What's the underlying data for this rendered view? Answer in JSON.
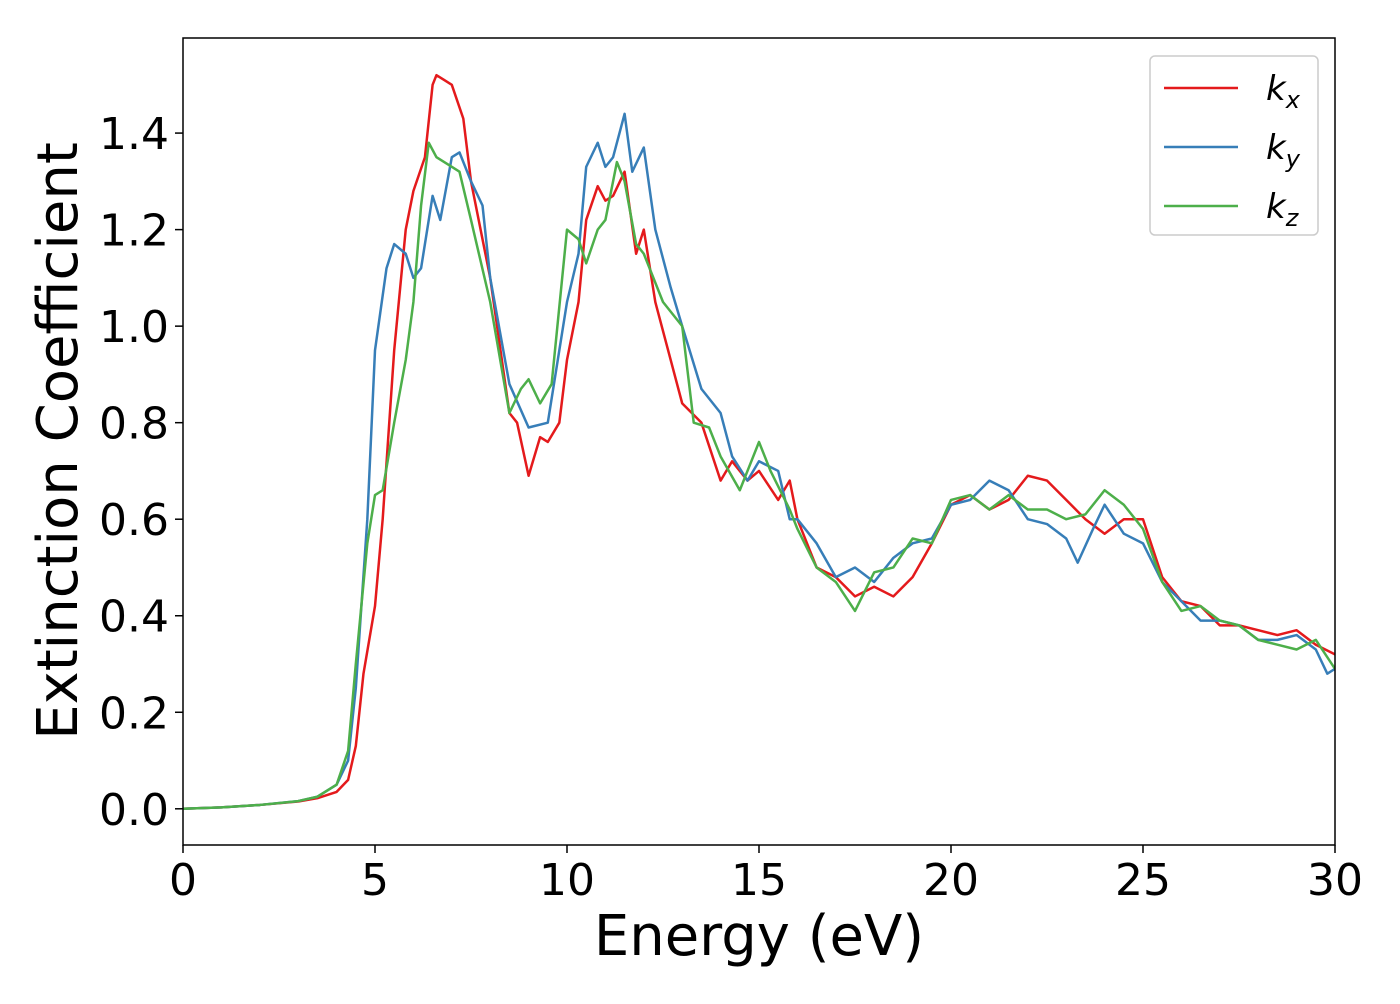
{
  "chart_data": {
    "type": "line",
    "xlabel": "Energy (eV)",
    "ylabel": "Extinction Coefficient",
    "xlim": [
      0,
      30
    ],
    "xticks": [
      0,
      5,
      10,
      15,
      20,
      25,
      30
    ],
    "ylim": [
      -0.075,
      1.597
    ],
    "yticks": [
      {
        "value": 0,
        "label": "0.0"
      },
      0.2,
      0.4,
      0.6,
      0.8,
      {
        "value": 1,
        "label": "1.0"
      },
      1.2,
      1.4
    ],
    "grid": false,
    "legend": "upper right",
    "series": [
      {
        "name": "kx",
        "color": "#e41a1c",
        "x": [
          0,
          1,
          2,
          3,
          3.5,
          4,
          4.3,
          4.5,
          4.7,
          5,
          5.2,
          5.5,
          5.8,
          6,
          6.3,
          6.5,
          6.6,
          6.8,
          7,
          7.3,
          7.5,
          8,
          8.5,
          8.7,
          9,
          9.3,
          9.5,
          9.8,
          10,
          10.3,
          10.5,
          10.8,
          11,
          11.2,
          11.5,
          11.8,
          12,
          12.3,
          12.7,
          13,
          13.5,
          14,
          14.3,
          14.7,
          15,
          15.5,
          15.8,
          16,
          16.5,
          17,
          17.5,
          18,
          18.5,
          19,
          19.5,
          20,
          20.5,
          21,
          21.5,
          22,
          22.5,
          23,
          23.5,
          24,
          24.5,
          25,
          25.5,
          26,
          26.5,
          27,
          27.5,
          28,
          28.5,
          29,
          29.5,
          30
        ],
        "values": [
          0,
          0.003,
          0.008,
          0.015,
          0.022,
          0.035,
          0.06,
          0.13,
          0.28,
          0.42,
          0.6,
          0.95,
          1.2,
          1.28,
          1.35,
          1.5,
          1.52,
          1.51,
          1.5,
          1.43,
          1.3,
          1.1,
          0.82,
          0.8,
          0.69,
          0.77,
          0.76,
          0.8,
          0.93,
          1.05,
          1.22,
          1.29,
          1.26,
          1.27,
          1.32,
          1.15,
          1.2,
          1.05,
          0.93,
          0.84,
          0.8,
          0.68,
          0.72,
          0.68,
          0.7,
          0.64,
          0.68,
          0.6,
          0.5,
          0.48,
          0.44,
          0.46,
          0.44,
          0.48,
          0.55,
          0.63,
          0.65,
          0.62,
          0.64,
          0.69,
          0.68,
          0.64,
          0.6,
          0.57,
          0.6,
          0.6,
          0.48,
          0.43,
          0.42,
          0.38,
          0.38,
          0.37,
          0.36,
          0.37,
          0.34,
          0.32
        ]
      },
      {
        "name": "ky",
        "color": "#377eb8",
        "x": [
          0,
          1,
          2,
          3,
          3.5,
          4,
          4.3,
          4.5,
          4.8,
          5,
          5.3,
          5.5,
          5.8,
          6,
          6.2,
          6.5,
          6.7,
          7,
          7.2,
          7.5,
          7.8,
          8,
          8.5,
          9,
          9.5,
          10,
          10.3,
          10.5,
          10.8,
          11,
          11.2,
          11.5,
          11.7,
          12,
          12.3,
          12.7,
          13,
          13.5,
          14,
          14.3,
          14.7,
          15,
          15.5,
          15.8,
          16,
          16.5,
          17,
          17.5,
          18,
          18.5,
          19,
          19.5,
          20,
          20.5,
          21,
          21.5,
          22,
          22.5,
          23,
          23.3,
          23.7,
          24,
          24.5,
          25,
          25.5,
          26,
          26.5,
          27,
          27.5,
          28,
          28.5,
          29,
          29.5,
          29.8,
          30
        ],
        "values": [
          0,
          0.003,
          0.008,
          0.016,
          0.025,
          0.05,
          0.1,
          0.25,
          0.6,
          0.95,
          1.12,
          1.17,
          1.15,
          1.1,
          1.12,
          1.27,
          1.22,
          1.35,
          1.36,
          1.3,
          1.25,
          1.1,
          0.88,
          0.79,
          0.8,
          1.05,
          1.15,
          1.33,
          1.38,
          1.33,
          1.35,
          1.44,
          1.32,
          1.37,
          1.2,
          1.08,
          1.0,
          0.87,
          0.82,
          0.73,
          0.68,
          0.72,
          0.7,
          0.6,
          0.6,
          0.55,
          0.48,
          0.5,
          0.47,
          0.52,
          0.55,
          0.56,
          0.63,
          0.64,
          0.68,
          0.66,
          0.6,
          0.59,
          0.56,
          0.51,
          0.58,
          0.63,
          0.57,
          0.55,
          0.47,
          0.43,
          0.39,
          0.39,
          0.38,
          0.35,
          0.35,
          0.36,
          0.33,
          0.28,
          0.29
        ]
      },
      {
        "name": "kz",
        "color": "#4daf4a",
        "x": [
          0,
          1,
          2,
          3,
          3.5,
          4,
          4.3,
          4.5,
          4.8,
          5,
          5.2,
          5.5,
          5.8,
          6,
          6.2,
          6.4,
          6.6,
          7,
          7.2,
          7.5,
          8,
          8.5,
          8.8,
          9,
          9.3,
          9.6,
          10,
          10.3,
          10.5,
          10.8,
          11,
          11.3,
          11.5,
          11.8,
          12,
          12.5,
          13,
          13.3,
          13.7,
          14,
          14.5,
          14.8,
          15,
          15.3,
          15.8,
          16,
          16.5,
          17,
          17.5,
          18,
          18.5,
          19,
          19.5,
          20,
          20.5,
          21,
          21.5,
          22,
          22.5,
          23,
          23.5,
          24,
          24.5,
          25,
          25.5,
          26,
          26.5,
          27,
          27.5,
          28,
          28.5,
          29,
          29.5,
          30
        ],
        "values": [
          0,
          0.003,
          0.008,
          0.016,
          0.025,
          0.05,
          0.12,
          0.3,
          0.55,
          0.65,
          0.66,
          0.8,
          0.93,
          1.05,
          1.25,
          1.38,
          1.35,
          1.33,
          1.32,
          1.22,
          1.05,
          0.82,
          0.87,
          0.89,
          0.84,
          0.88,
          1.2,
          1.18,
          1.13,
          1.2,
          1.22,
          1.34,
          1.3,
          1.17,
          1.15,
          1.05,
          1.0,
          0.8,
          0.79,
          0.73,
          0.66,
          0.72,
          0.76,
          0.7,
          0.62,
          0.58,
          0.5,
          0.47,
          0.41,
          0.49,
          0.5,
          0.56,
          0.55,
          0.64,
          0.65,
          0.62,
          0.65,
          0.62,
          0.62,
          0.6,
          0.61,
          0.66,
          0.63,
          0.58,
          0.47,
          0.41,
          0.42,
          0.39,
          0.38,
          0.35,
          0.34,
          0.33,
          0.35,
          0.29
        ]
      }
    ]
  }
}
